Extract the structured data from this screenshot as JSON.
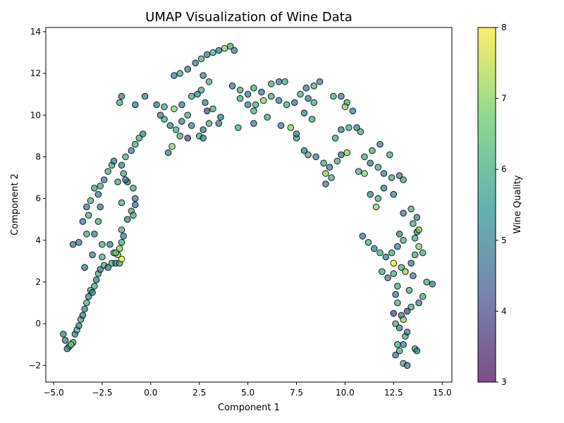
{
  "chart_data": {
    "type": "scatter",
    "title": "UMAP Visualization of Wine Data",
    "xlabel": "Component 1",
    "ylabel": "Component 2",
    "xlim": [
      -5.4,
      15.5
    ],
    "ylim": [
      -2.8,
      14.2
    ],
    "xticks": [
      -5.0,
      -2.5,
      0.0,
      2.5,
      5.0,
      7.5,
      10.0,
      12.5,
      15.0
    ],
    "xtick_labels": [
      "−5.0",
      "−2.5",
      "0.0",
      "2.5",
      "5.0",
      "7.5",
      "10.0",
      "12.5",
      "15.0"
    ],
    "yticks": [
      -2,
      0,
      2,
      4,
      6,
      8,
      10,
      12,
      14
    ],
    "ytick_labels": [
      "−2",
      "0",
      "2",
      "4",
      "6",
      "8",
      "10",
      "12",
      "14"
    ],
    "grid": false,
    "colorbar": {
      "label": "Wine Quality",
      "range": [
        3,
        8
      ],
      "ticks": [
        3,
        4,
        5,
        6,
        7,
        8
      ],
      "tick_labels": [
        "3",
        "4",
        "5",
        "6",
        "7",
        "8"
      ],
      "colormap": "viridis",
      "colors": [
        "#440154",
        "#3b528b",
        "#21918c",
        "#5ec962",
        "#fde725"
      ]
    },
    "marker": {
      "edgecolor": "#000000",
      "alpha": 0.7
    },
    "points": [
      [
        -4.5,
        -0.5,
        5
      ],
      [
        -4.4,
        -0.8,
        5
      ],
      [
        -4.2,
        -1.1,
        6
      ],
      [
        -4.3,
        -1.2,
        5
      ],
      [
        -4.0,
        -0.9,
        6
      ],
      [
        -4.1,
        -1.0,
        7
      ],
      [
        -3.9,
        -0.5,
        5
      ],
      [
        -3.8,
        -0.3,
        6
      ],
      [
        -3.7,
        -0.1,
        5
      ],
      [
        -3.6,
        0.2,
        6
      ],
      [
        -3.5,
        0.4,
        5
      ],
      [
        -3.4,
        0.7,
        5
      ],
      [
        -3.3,
        1.0,
        6
      ],
      [
        -3.2,
        1.3,
        5
      ],
      [
        -3.1,
        1.6,
        6
      ],
      [
        -3.0,
        1.5,
        5
      ],
      [
        -2.9,
        1.8,
        6
      ],
      [
        -2.8,
        2.1,
        5
      ],
      [
        -2.7,
        2.4,
        6
      ],
      [
        -2.6,
        2.6,
        5
      ],
      [
        -2.4,
        2.8,
        6
      ],
      [
        -2.2,
        2.7,
        5
      ],
      [
        -2.0,
        2.9,
        6
      ],
      [
        -1.8,
        2.9,
        5
      ],
      [
        -1.6,
        2.9,
        6
      ],
      [
        -1.5,
        3.1,
        8
      ],
      [
        -1.7,
        3.3,
        7
      ],
      [
        -1.9,
        3.4,
        6
      ],
      [
        -1.6,
        3.6,
        7
      ],
      [
        -1.5,
        3.9,
        6
      ],
      [
        -1.4,
        4.2,
        5
      ],
      [
        -1.5,
        4.5,
        6
      ],
      [
        -1.2,
        5.0,
        5
      ],
      [
        -1.0,
        5.4,
        6
      ],
      [
        -0.8,
        5.7,
        5
      ],
      [
        -0.9,
        5.2,
        6
      ],
      [
        -0.8,
        6.0,
        5
      ],
      [
        -0.9,
        6.5,
        6
      ],
      [
        -1.2,
        6.8,
        5
      ],
      [
        -1.4,
        7.2,
        6
      ],
      [
        -1.5,
        7.6,
        5
      ],
      [
        -1.3,
        8.0,
        6
      ],
      [
        -1.0,
        8.3,
        5
      ],
      [
        -0.8,
        8.6,
        6
      ],
      [
        -0.6,
        8.9,
        6
      ],
      [
        -0.4,
        9.1,
        5
      ],
      [
        -0.8,
        10.5,
        5
      ],
      [
        -1.6,
        10.6,
        6
      ],
      [
        -1.5,
        10.9,
        5
      ],
      [
        -0.3,
        10.9,
        5
      ],
      [
        -4.0,
        3.8,
        5
      ],
      [
        -3.7,
        3.9,
        5
      ],
      [
        -3.3,
        4.3,
        6
      ],
      [
        -3.5,
        4.9,
        5
      ],
      [
        -3.2,
        5.2,
        6
      ],
      [
        -3.3,
        5.6,
        5
      ],
      [
        -3.1,
        5.9,
        6
      ],
      [
        -2.7,
        6.2,
        5
      ],
      [
        -2.6,
        6.6,
        6
      ],
      [
        -2.4,
        6.9,
        5
      ],
      [
        -2.2,
        7.3,
        6
      ],
      [
        -2.0,
        7.6,
        6
      ],
      [
        -1.9,
        7.8,
        5
      ],
      [
        -2.9,
        6.5,
        6
      ],
      [
        -2.6,
        5.6,
        5
      ],
      [
        -2.7,
        4.9,
        6
      ],
      [
        -2.9,
        4.3,
        5
      ],
      [
        -2.5,
        3.8,
        6
      ],
      [
        -3.0,
        3.3,
        5
      ],
      [
        -3.4,
        2.7,
        5
      ],
      [
        -2.5,
        3.2,
        6
      ],
      [
        -2.1,
        3.8,
        5
      ],
      [
        -1.8,
        3.4,
        7
      ],
      [
        -1.5,
        5.8,
        6
      ],
      [
        -1.3,
        6.9,
        5
      ],
      [
        -1.7,
        6.8,
        6
      ],
      [
        0.3,
        10.5,
        5
      ],
      [
        0.7,
        10.4,
        6
      ],
      [
        1.2,
        10.3,
        7
      ],
      [
        1.6,
        10.5,
        5
      ],
      [
        1.2,
        11.9,
        5
      ],
      [
        1.5,
        12.0,
        6
      ],
      [
        1.9,
        12.2,
        5
      ],
      [
        2.3,
        12.5,
        5
      ],
      [
        2.6,
        12.7,
        6
      ],
      [
        2.9,
        12.9,
        5
      ],
      [
        3.2,
        13.0,
        6
      ],
      [
        3.5,
        13.1,
        5
      ],
      [
        3.8,
        13.2,
        7
      ],
      [
        4.1,
        13.3,
        6
      ],
      [
        4.3,
        13.1,
        5
      ],
      [
        3.0,
        11.6,
        6
      ],
      [
        2.7,
        11.9,
        5
      ],
      [
        2.6,
        11.2,
        6
      ],
      [
        2.8,
        10.6,
        5
      ],
      [
        3.2,
        10.3,
        6
      ],
      [
        3.6,
        9.9,
        5
      ],
      [
        3.0,
        9.6,
        6
      ],
      [
        2.7,
        9.3,
        5
      ],
      [
        2.5,
        9.0,
        6
      ],
      [
        2.1,
        9.5,
        5
      ],
      [
        1.9,
        10.0,
        6
      ],
      [
        1.6,
        9.7,
        5
      ],
      [
        1.3,
        9.3,
        6
      ],
      [
        1.0,
        9.5,
        5
      ],
      [
        0.7,
        9.8,
        6
      ],
      [
        0.5,
        10.0,
        5
      ],
      [
        1.5,
        9.0,
        6
      ],
      [
        0.9,
        8.2,
        5
      ],
      [
        1.1,
        8.5,
        7
      ],
      [
        1.9,
        8.9,
        4
      ],
      [
        2.7,
        8.9,
        5
      ],
      [
        2.9,
        10.2,
        4
      ],
      [
        2.1,
        10.9,
        6
      ],
      [
        2.4,
        11.0,
        5
      ],
      [
        4.2,
        11.4,
        5
      ],
      [
        4.6,
        11.2,
        6
      ],
      [
        5.0,
        11.0,
        5
      ],
      [
        5.3,
        11.3,
        6
      ],
      [
        5.7,
        11.1,
        5
      ],
      [
        6.2,
        11.5,
        6
      ],
      [
        6.6,
        11.6,
        5
      ],
      [
        6.9,
        11.6,
        6
      ],
      [
        4.6,
        10.8,
        6
      ],
      [
        5.0,
        10.5,
        5
      ],
      [
        5.4,
        10.5,
        6
      ],
      [
        5.8,
        10.7,
        7
      ],
      [
        6.2,
        10.9,
        6
      ],
      [
        6.6,
        10.7,
        5
      ],
      [
        7.0,
        10.5,
        6
      ],
      [
        7.4,
        10.6,
        5
      ],
      [
        5.3,
        10.2,
        6
      ],
      [
        5.3,
        9.6,
        5
      ],
      [
        4.5,
        9.4,
        6
      ],
      [
        3.5,
        9.6,
        5
      ],
      [
        6.0,
        9.9,
        6
      ],
      [
        6.7,
        9.5,
        5
      ],
      [
        7.2,
        9.4,
        7
      ],
      [
        7.5,
        8.9,
        6
      ],
      [
        7.9,
        8.3,
        5
      ],
      [
        8.1,
        8.1,
        6
      ],
      [
        8.5,
        8.0,
        5
      ],
      [
        8.9,
        7.7,
        6
      ],
      [
        9.2,
        7.5,
        5
      ],
      [
        9.0,
        7.2,
        7
      ],
      [
        9.3,
        7.0,
        6
      ],
      [
        9.0,
        6.7,
        5
      ],
      [
        9.6,
        7.8,
        6
      ],
      [
        9.8,
        8.1,
        5
      ],
      [
        10.1,
        8.2,
        7
      ],
      [
        9.5,
        8.9,
        6
      ],
      [
        9.8,
        9.3,
        5
      ],
      [
        10.2,
        9.4,
        6
      ],
      [
        10.6,
        9.4,
        5
      ],
      [
        10.8,
        9.2,
        6
      ],
      [
        9.8,
        10.9,
        5
      ],
      [
        10.1,
        10.6,
        6
      ],
      [
        10.4,
        10.2,
        5
      ],
      [
        10.0,
        10.4,
        7
      ],
      [
        9.4,
        10.9,
        6
      ],
      [
        7.7,
        11.0,
        6
      ],
      [
        8.0,
        11.3,
        5
      ],
      [
        8.4,
        11.4,
        6
      ],
      [
        8.7,
        11.6,
        5
      ],
      [
        8.1,
        10.8,
        5
      ],
      [
        8.4,
        10.6,
        6
      ],
      [
        7.9,
        10.1,
        5
      ],
      [
        8.3,
        9.8,
        6
      ],
      [
        7.5,
        9.1,
        5
      ],
      [
        11.0,
        8.0,
        6
      ],
      [
        11.3,
        7.7,
        5
      ],
      [
        11.7,
        7.5,
        6
      ],
      [
        12.0,
        7.2,
        5
      ],
      [
        12.4,
        7.0,
        6
      ],
      [
        12.8,
        7.1,
        5
      ],
      [
        13.0,
        6.9,
        6
      ],
      [
        11.4,
        8.3,
        6
      ],
      [
        11.8,
        8.6,
        5
      ],
      [
        12.3,
        8.1,
        6
      ],
      [
        11.0,
        7.2,
        7
      ],
      [
        10.7,
        7.3,
        6
      ],
      [
        11.3,
        6.2,
        5
      ],
      [
        11.7,
        6.0,
        6
      ],
      [
        12.0,
        6.5,
        5
      ],
      [
        12.5,
        6.2,
        5
      ],
      [
        11.6,
        5.6,
        7
      ],
      [
        10.9,
        4.2,
        5
      ],
      [
        11.2,
        3.9,
        6
      ],
      [
        11.5,
        3.6,
        5
      ],
      [
        11.8,
        3.4,
        6
      ],
      [
        12.1,
        3.2,
        5
      ],
      [
        12.4,
        3.4,
        6
      ],
      [
        12.7,
        3.7,
        5
      ],
      [
        13.0,
        4.0,
        6
      ],
      [
        12.8,
        4.3,
        5
      ],
      [
        11.9,
        2.5,
        6
      ],
      [
        12.2,
        2.2,
        5
      ],
      [
        12.5,
        2.4,
        6
      ],
      [
        12.5,
        2.9,
        8
      ],
      [
        12.9,
        2.7,
        6
      ],
      [
        13.1,
        2.5,
        7
      ],
      [
        13.4,
        2.9,
        5
      ],
      [
        13.6,
        3.3,
        6
      ],
      [
        13.8,
        3.7,
        7
      ],
      [
        13.6,
        4.1,
        6
      ],
      [
        13.7,
        4.4,
        5
      ],
      [
        13.5,
        4.8,
        6
      ],
      [
        13.7,
        5.1,
        5
      ],
      [
        13.4,
        5.5,
        6
      ],
      [
        13.0,
        5.3,
        5
      ],
      [
        13.8,
        4.5,
        7
      ],
      [
        14.0,
        3.4,
        6
      ],
      [
        14.2,
        2.0,
        6
      ],
      [
        14.5,
        1.9,
        5
      ],
      [
        14.0,
        1.3,
        6
      ],
      [
        13.8,
        1.0,
        5
      ],
      [
        13.4,
        0.8,
        6
      ],
      [
        13.2,
        0.6,
        4
      ],
      [
        12.9,
        0.4,
        5
      ],
      [
        12.6,
        0.0,
        6
      ],
      [
        12.8,
        -0.2,
        5
      ],
      [
        13.1,
        -0.6,
        6
      ],
      [
        13.0,
        -1.0,
        5
      ],
      [
        12.8,
        -1.3,
        6
      ],
      [
        12.6,
        -1.5,
        5
      ],
      [
        13.0,
        -1.9,
        6
      ],
      [
        13.2,
        -2.0,
        5
      ],
      [
        13.6,
        -1.2,
        6
      ],
      [
        13.7,
        -1.3,
        5
      ],
      [
        12.7,
        1.0,
        6
      ],
      [
        12.6,
        1.4,
        5
      ],
      [
        13.3,
        1.6,
        6
      ],
      [
        13.0,
        0.2,
        7
      ],
      [
        12.7,
        1.8,
        6
      ],
      [
        13.5,
        2.3,
        5
      ],
      [
        12.5,
        0.5,
        4
      ],
      [
        13.2,
        -0.4,
        5
      ],
      [
        12.7,
        -1.0,
        6
      ]
    ]
  }
}
